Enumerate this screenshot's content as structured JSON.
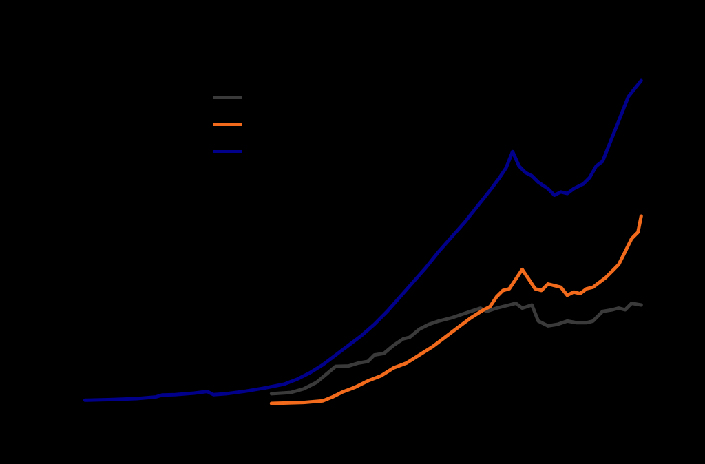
{
  "chart_data": {
    "type": "line",
    "title": "",
    "xlabel": "",
    "ylabel": "",
    "x_range": [
      0,
      100
    ],
    "y_range": [
      0,
      100
    ],
    "grid": false,
    "legend_position": "top-left",
    "series": [
      {
        "color": "#3a3a3a",
        "points": [
          [
            39,
            3
          ],
          [
            42,
            3.4
          ],
          [
            44,
            4.5
          ],
          [
            46,
            6.5
          ],
          [
            47.5,
            9
          ],
          [
            49,
            11.5
          ],
          [
            51,
            11.6
          ],
          [
            52.5,
            12.5
          ],
          [
            54,
            13
          ],
          [
            55,
            15
          ],
          [
            56.5,
            15.5
          ],
          [
            58,
            18
          ],
          [
            59.5,
            20
          ],
          [
            60.5,
            20.5
          ],
          [
            62,
            23
          ],
          [
            63.5,
            24.5
          ],
          [
            65,
            25.5
          ],
          [
            67,
            26.5
          ],
          [
            68.5,
            27.5
          ],
          [
            70,
            28.5
          ],
          [
            71.5,
            29.5
          ],
          [
            72.5,
            28.5
          ],
          [
            74,
            29.5
          ],
          [
            76,
            30.5
          ],
          [
            77,
            31
          ],
          [
            78,
            29.5
          ],
          [
            79.5,
            30.5
          ],
          [
            80.5,
            25.5
          ],
          [
            82,
            24
          ],
          [
            83.5,
            24.5
          ],
          [
            85,
            25.5
          ],
          [
            86.5,
            25
          ],
          [
            88,
            25
          ],
          [
            89,
            25.5
          ],
          [
            90.5,
            28.5
          ],
          [
            92,
            29
          ],
          [
            93,
            29.5
          ],
          [
            94,
            29
          ],
          [
            95,
            31
          ],
          [
            96.5,
            30.5
          ]
        ]
      },
      {
        "color": "#f26a1b",
        "points": [
          [
            39,
            0
          ],
          [
            44,
            0.3
          ],
          [
            47,
            0.8
          ],
          [
            48.5,
            2
          ],
          [
            50,
            3.5
          ],
          [
            52,
            5
          ],
          [
            54,
            7
          ],
          [
            56,
            8.5
          ],
          [
            58,
            11
          ],
          [
            60,
            12.5
          ],
          [
            62,
            15
          ],
          [
            64,
            17.5
          ],
          [
            66,
            20.5
          ],
          [
            68,
            23.5
          ],
          [
            70,
            26.5
          ],
          [
            72,
            29
          ],
          [
            73,
            30
          ],
          [
            74,
            33
          ],
          [
            75,
            35
          ],
          [
            76,
            35.5
          ],
          [
            77,
            38.5
          ],
          [
            78,
            41.5
          ],
          [
            79,
            38.5
          ],
          [
            80,
            35.5
          ],
          [
            81,
            35
          ],
          [
            82,
            37
          ],
          [
            83,
            36.5
          ],
          [
            84,
            36
          ],
          [
            85,
            33.5
          ],
          [
            86,
            34.5
          ],
          [
            87,
            34
          ],
          [
            88,
            35.5
          ],
          [
            89,
            36
          ],
          [
            90,
            37.5
          ],
          [
            91,
            39
          ],
          [
            92,
            41
          ],
          [
            93,
            43
          ],
          [
            94,
            47
          ],
          [
            95,
            51
          ],
          [
            96,
            53
          ],
          [
            96.5,
            58
          ]
        ]
      },
      {
        "color": "#00008b",
        "points": [
          [
            10,
            1
          ],
          [
            14,
            1.2
          ],
          [
            18,
            1.5
          ],
          [
            21,
            2
          ],
          [
            22,
            2.6
          ],
          [
            24,
            2.7
          ],
          [
            27,
            3.2
          ],
          [
            29,
            3.7
          ],
          [
            30,
            2.7
          ],
          [
            32,
            3
          ],
          [
            35,
            3.8
          ],
          [
            38,
            4.8
          ],
          [
            41,
            6
          ],
          [
            43,
            7.5
          ],
          [
            45,
            9.5
          ],
          [
            47,
            12
          ],
          [
            49,
            15
          ],
          [
            51,
            18
          ],
          [
            53,
            21
          ],
          [
            55,
            24.5
          ],
          [
            57,
            28.5
          ],
          [
            59,
            33
          ],
          [
            61,
            37.5
          ],
          [
            63,
            42
          ],
          [
            65,
            47
          ],
          [
            67,
            51.5
          ],
          [
            69,
            56
          ],
          [
            71,
            61
          ],
          [
            73,
            66
          ],
          [
            74.5,
            70
          ],
          [
            75.5,
            73
          ],
          [
            76.5,
            78
          ],
          [
            77.5,
            73.5
          ],
          [
            78.5,
            71.5
          ],
          [
            79.5,
            70.5
          ],
          [
            80.5,
            68.5
          ],
          [
            82,
            66.5
          ],
          [
            83,
            64.5
          ],
          [
            84,
            65.5
          ],
          [
            85,
            65
          ],
          [
            86,
            66.5
          ],
          [
            87.5,
            68
          ],
          [
            88.5,
            70
          ],
          [
            89.5,
            73.5
          ],
          [
            90.5,
            75
          ],
          [
            91.5,
            80
          ],
          [
            92.5,
            85
          ],
          [
            93.5,
            90
          ],
          [
            94.5,
            95
          ],
          [
            96.5,
            100
          ]
        ]
      }
    ]
  }
}
